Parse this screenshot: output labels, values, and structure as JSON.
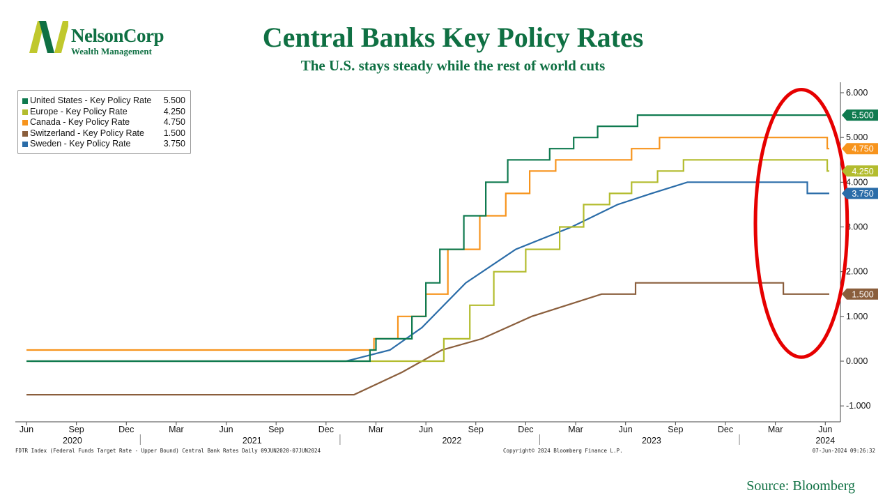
{
  "header": {
    "title": "Central Banks Key Policy Rates",
    "subtitle": "The U.S. stays steady while the rest of world cuts"
  },
  "logo": {
    "name": "NelsonCorp",
    "tagline": "Wealth Management",
    "color_primary": "#0f7043",
    "color_accent": "#c0c82d"
  },
  "footer": {
    "left": "FDTR Index (Federal Funds Target Rate - Upper Bound) Central Bank Rates  Daily 09JUN2020-07JUN2024",
    "center": "Copyright© 2024 Bloomberg Finance L.P.",
    "right": "07-Jun-2024 09:26:32"
  },
  "source": "Source: Bloomberg",
  "chart_data": {
    "type": "line",
    "title": "Central Banks Key Policy Rates",
    "xlabel": "",
    "ylabel": "",
    "x_range": [
      2020.42,
      2024.44
    ],
    "ylim": [
      -1.3,
      6.2
    ],
    "y_ticks": [
      "-1.000",
      "0.000",
      "1.000",
      "2.000",
      "3.000",
      "4.000",
      "5.000",
      "6.000"
    ],
    "y_tick_values": [
      -1,
      0,
      1,
      2,
      3,
      4,
      5,
      6
    ],
    "x_month_ticks": [
      {
        "t": 2020.42,
        "label": "Jun"
      },
      {
        "t": 2020.67,
        "label": "Sep"
      },
      {
        "t": 2020.92,
        "label": "Dec"
      },
      {
        "t": 2021.17,
        "label": "Mar"
      },
      {
        "t": 2021.42,
        "label": "Jun"
      },
      {
        "t": 2021.67,
        "label": "Sep"
      },
      {
        "t": 2021.92,
        "label": "Dec"
      },
      {
        "t": 2022.17,
        "label": "Mar"
      },
      {
        "t": 2022.42,
        "label": "Jun"
      },
      {
        "t": 2022.67,
        "label": "Sep"
      },
      {
        "t": 2022.92,
        "label": "Dec"
      },
      {
        "t": 2023.17,
        "label": "Mar"
      },
      {
        "t": 2023.42,
        "label": "Jun"
      },
      {
        "t": 2023.67,
        "label": "Sep"
      },
      {
        "t": 2023.92,
        "label": "Dec"
      },
      {
        "t": 2024.17,
        "label": "Mar"
      },
      {
        "t": 2024.42,
        "label": "Jun"
      }
    ],
    "x_year_labels": [
      {
        "t": 2020.65,
        "label": "2020"
      },
      {
        "t": 2021.55,
        "label": "2021"
      },
      {
        "t": 2022.55,
        "label": "2022"
      },
      {
        "t": 2023.55,
        "label": "2023"
      },
      {
        "t": 2024.42,
        "label": "2024"
      }
    ],
    "x_year_separators": [
      2020.99,
      2021.99,
      2022.99,
      2023.99
    ],
    "legend_position": "top-left",
    "series": [
      {
        "name": "United States - Key Policy Rate",
        "last": "5.500",
        "last_value": 5.5,
        "color": "#0f7a4f",
        "points": [
          [
            2020.42,
            0
          ],
          [
            2022.14,
            0
          ],
          [
            2022.14,
            0.25
          ],
          [
            2022.17,
            0.25
          ],
          [
            2022.17,
            0.5
          ],
          [
            2022.35,
            0.5
          ],
          [
            2022.35,
            1.0
          ],
          [
            2022.42,
            1.0
          ],
          [
            2022.42,
            1.75
          ],
          [
            2022.49,
            1.75
          ],
          [
            2022.49,
            2.5
          ],
          [
            2022.61,
            2.5
          ],
          [
            2022.61,
            3.25
          ],
          [
            2022.72,
            3.25
          ],
          [
            2022.72,
            4.0
          ],
          [
            2022.83,
            4.0
          ],
          [
            2022.83,
            4.5
          ],
          [
            2023.04,
            4.5
          ],
          [
            2023.04,
            4.75
          ],
          [
            2023.16,
            4.75
          ],
          [
            2023.16,
            5.0
          ],
          [
            2023.28,
            5.0
          ],
          [
            2023.28,
            5.25
          ],
          [
            2023.48,
            5.25
          ],
          [
            2023.48,
            5.5
          ],
          [
            2024.44,
            5.5
          ]
        ]
      },
      {
        "name": "Europe - Key Policy Rate",
        "last": "4.250",
        "last_value": 4.25,
        "color": "#b3bc2e",
        "points": [
          [
            2020.42,
            0
          ],
          [
            2022.51,
            0
          ],
          [
            2022.51,
            0.5
          ],
          [
            2022.64,
            0.5
          ],
          [
            2022.64,
            1.25
          ],
          [
            2022.76,
            1.25
          ],
          [
            2022.76,
            2.0
          ],
          [
            2022.92,
            2.0
          ],
          [
            2022.92,
            2.5
          ],
          [
            2023.09,
            2.5
          ],
          [
            2023.09,
            3.0
          ],
          [
            2023.21,
            3.0
          ],
          [
            2023.21,
            3.5
          ],
          [
            2023.34,
            3.5
          ],
          [
            2023.34,
            3.75
          ],
          [
            2023.45,
            3.75
          ],
          [
            2023.45,
            4.0
          ],
          [
            2023.58,
            4.0
          ],
          [
            2023.58,
            4.25
          ],
          [
            2023.71,
            4.25
          ],
          [
            2023.71,
            4.5
          ],
          [
            2024.43,
            4.5
          ],
          [
            2024.43,
            4.25
          ],
          [
            2024.44,
            4.25
          ]
        ]
      },
      {
        "name": "Canada - Key Policy Rate",
        "last": "4.750",
        "last_value": 4.75,
        "color": "#f7941d",
        "points": [
          [
            2020.42,
            0.25
          ],
          [
            2022.16,
            0.25
          ],
          [
            2022.16,
            0.5
          ],
          [
            2022.28,
            0.5
          ],
          [
            2022.28,
            1.0
          ],
          [
            2022.42,
            1.0
          ],
          [
            2022.42,
            1.5
          ],
          [
            2022.53,
            1.5
          ],
          [
            2022.53,
            2.5
          ],
          [
            2022.69,
            2.5
          ],
          [
            2022.69,
            3.25
          ],
          [
            2022.82,
            3.25
          ],
          [
            2022.82,
            3.75
          ],
          [
            2022.94,
            3.75
          ],
          [
            2022.94,
            4.25
          ],
          [
            2023.07,
            4.25
          ],
          [
            2023.07,
            4.5
          ],
          [
            2023.45,
            4.5
          ],
          [
            2023.45,
            4.75
          ],
          [
            2023.59,
            4.75
          ],
          [
            2023.59,
            5.0
          ],
          [
            2024.43,
            5.0
          ],
          [
            2024.43,
            4.75
          ],
          [
            2024.44,
            4.75
          ]
        ]
      },
      {
        "name": "Switzerland - Key Policy Rate",
        "last": "1.500",
        "last_value": 1.5,
        "color": "#8a5e3c",
        "points": [
          [
            2020.42,
            -0.75
          ],
          [
            2022.06,
            -0.75
          ],
          [
            2022.3,
            -0.25
          ],
          [
            2022.5,
            0.25
          ],
          [
            2022.7,
            0.5
          ],
          [
            2022.95,
            1.0
          ],
          [
            2023.3,
            1.5
          ],
          [
            2023.47,
            1.5
          ],
          [
            2023.47,
            1.75
          ],
          [
            2024.21,
            1.75
          ],
          [
            2024.21,
            1.5
          ],
          [
            2024.44,
            1.5
          ]
        ]
      },
      {
        "name": "Sweden - Key Policy Rate",
        "last": "3.750",
        "last_value": 3.75,
        "color": "#2a6ca8",
        "points": [
          [
            2020.44,
            0
          ],
          [
            2022.02,
            0
          ],
          [
            2022.24,
            0.25
          ],
          [
            2022.4,
            0.75
          ],
          [
            2022.62,
            1.75
          ],
          [
            2022.87,
            2.5
          ],
          [
            2023.15,
            3.0
          ],
          [
            2023.38,
            3.5
          ],
          [
            2023.55,
            3.75
          ],
          [
            2023.73,
            4.0
          ],
          [
            2024.33,
            4.0
          ],
          [
            2024.33,
            3.75
          ],
          [
            2024.44,
            3.75
          ]
        ]
      }
    ],
    "annotation": {
      "type": "ellipse",
      "color": "#e60000",
      "t_center": 2024.3,
      "y_center": 3.08,
      "t_radius": 0.23,
      "y_radius": 2.99
    }
  }
}
